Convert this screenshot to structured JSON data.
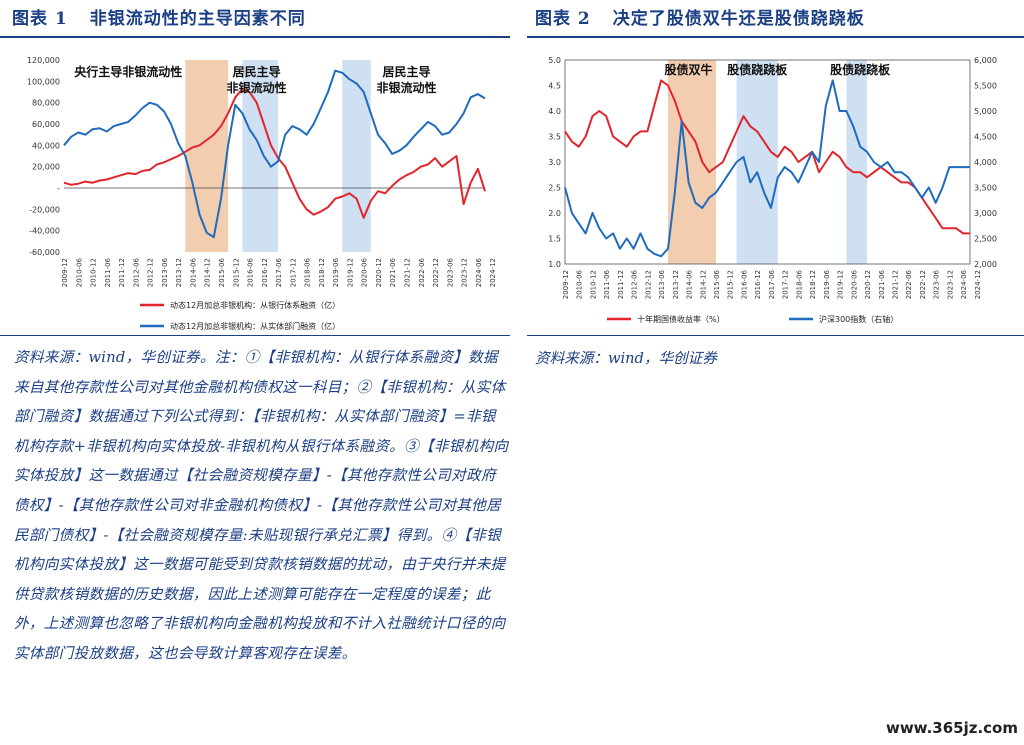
{
  "figure1": {
    "title_prefix": "图表 1",
    "title": "非银流动性的主导因素不同"
  },
  "figure2": {
    "title_prefix": "图表 2",
    "title": "决定了股债双牛还是股债跷跷板"
  },
  "note1": "资料来源：wind，华创证券。注：①【非银机构：从银行体系融资】数据来自其他存款性公司对其他金融机构债权这一科目；②【非银机构：从实体部门融资】数据通过下列公式得到：【非银机构：从实体部门融资】=非银机构存款+非银机构向实体投放-非银机构从银行体系融资。③【非银机构向实体投放】这一数据通过【社会融资规模存量】-【其他存款性公司对政府债权】-【其他存款性公司对非金融机构债权】-【其他存款性公司对其他居民部门债权】-【社会融资规模存量:未贴现银行承兑汇票】得到。④【非银机构向实体投放】这一数据可能受到贷款核销数据的扰动，由于央行并未提供贷款核销数据的历史数据，因此上述测算可能存在一定程度的误差；此外，上述测算也忽略了非银机构向金融机构投放和不计入社融统计口径的向实体部门投放数据，这也会导致计算客观存在误差。",
  "note2": "资料来源：wind，华创证券",
  "watermark": "www.365jz.com",
  "chart_data": [
    {
      "type": "line",
      "x_start": "2009-12",
      "x_step_months": 3,
      "x_ticks": [
        "2009-12",
        "2010-06",
        "2010-12",
        "2011-06",
        "2011-12",
        "2012-06",
        "2012-12",
        "2013-06",
        "2013-12",
        "2014-06",
        "2014-12",
        "2015-06",
        "2015-12",
        "2016-06",
        "2016-12",
        "2017-06",
        "2017-12",
        "2018-06",
        "2018-12",
        "2019-06",
        "2019-12",
        "2020-06",
        "2020-12",
        "2021-06",
        "2021-12",
        "2022-06",
        "2022-12",
        "2023-06",
        "2023-12",
        "2024-06",
        "2024-12"
      ],
      "ylim": [
        -60000,
        120000
      ],
      "y_ticks": [
        -60000,
        -40000,
        -20000,
        0,
        20000,
        40000,
        60000,
        80000,
        100000,
        120000
      ],
      "y_tick_labels": [
        "-60,000",
        "-40,000",
        "-20,000",
        "-",
        "20,000",
        "40,000",
        "60,000",
        "80,000",
        "100,000",
        "120,000"
      ],
      "shaded": [
        {
          "from": "2014-03",
          "to": "2015-09",
          "color": "#f3cdb0"
        },
        {
          "from": "2016-03",
          "to": "2017-06",
          "color": "#cfe0f3"
        },
        {
          "from": "2019-09",
          "to": "2020-09",
          "color": "#cfe0f3"
        }
      ],
      "annotations": [
        {
          "text": "央行主导非银流动性",
          "at": "2012-03",
          "y": 108000,
          "lines": 1
        },
        {
          "text": "居民主导",
          "text2": "非银流动性",
          "at": "2016-09",
          "y": 118000,
          "lines": 2
        },
        {
          "text": "居民主导",
          "text2": "非银流动性",
          "at": "2021-12",
          "y": 117000,
          "lines": 2
        }
      ],
      "series": [
        {
          "name": "动态12月加总非银机构：从银行体系融资（亿）",
          "color": "#e0262c",
          "values": [
            5000,
            3000,
            4000,
            6000,
            5000,
            7000,
            8000,
            10000,
            12000,
            14000,
            13000,
            16000,
            17000,
            22000,
            24000,
            27000,
            30000,
            34000,
            38000,
            40000,
            45000,
            50000,
            58000,
            70000,
            85000,
            93000,
            90000,
            80000,
            60000,
            40000,
            28000,
            20000,
            5000,
            -10000,
            -20000,
            -25000,
            -22000,
            -18000,
            -10000,
            -8000,
            -5000,
            -10000,
            -28000,
            -12000,
            -3000,
            -5000,
            2000,
            8000,
            12000,
            15000,
            20000,
            22000,
            28000,
            20000,
            25000,
            30000,
            -15000,
            5000,
            18000,
            -3000
          ]
        },
        {
          "name": "动态12月加总非银机构：从实体部门融资（亿）",
          "color": "#1f6bbf",
          "values": [
            40000,
            48000,
            52000,
            50000,
            55000,
            56000,
            53000,
            58000,
            60000,
            62000,
            68000,
            75000,
            80000,
            78000,
            72000,
            60000,
            42000,
            30000,
            5000,
            -25000,
            -42000,
            -46000,
            -10000,
            40000,
            78000,
            70000,
            55000,
            45000,
            30000,
            20000,
            25000,
            50000,
            58000,
            55000,
            50000,
            60000,
            75000,
            90000,
            110000,
            108000,
            102000,
            98000,
            90000,
            70000,
            50000,
            42000,
            32000,
            35000,
            40000,
            48000,
            55000,
            62000,
            58000,
            50000,
            52000,
            60000,
            70000,
            85000,
            88000,
            84000
          ]
        }
      ]
    },
    {
      "type": "line",
      "x_start": "2009-12",
      "x_step_months": 3,
      "x_ticks": [
        "2009-12",
        "2010-06",
        "2010-12",
        "2011-06",
        "2011-12",
        "2012-06",
        "2012-12",
        "2013-06",
        "2013-12",
        "2014-06",
        "2014-12",
        "2015-06",
        "2015-12",
        "2016-06",
        "2016-12",
        "2017-06",
        "2017-12",
        "2018-06",
        "2018-12",
        "2019-06",
        "2019-12",
        "2020-06",
        "2020-12",
        "2021-06",
        "2021-12",
        "2022-06",
        "2022-12",
        "2023-06",
        "2023-12",
        "2024-06",
        "2024-12"
      ],
      "ylim": [
        1.0,
        5.0
      ],
      "y_ticks": [
        1.0,
        1.5,
        2.0,
        2.5,
        3.0,
        3.5,
        4.0,
        4.5,
        5.0
      ],
      "y_tick_labels": [
        "1.0",
        "1.5",
        "2.0",
        "2.5",
        "3.0",
        "3.5",
        "4.0",
        "4.5",
        "5.0"
      ],
      "y2lim": [
        2000,
        6000
      ],
      "y2_ticks": [
        2000,
        2500,
        3000,
        3500,
        4000,
        4500,
        5000,
        5500,
        6000
      ],
      "y2_tick_labels": [
        "2,000",
        "2,500",
        "3,000",
        "3,500",
        "4,000",
        "4,500",
        "5,000",
        "5,500",
        "6,000"
      ],
      "shaded": [
        {
          "from": "2013-09",
          "to": "2015-06",
          "color": "#f3cdb0"
        },
        {
          "from": "2016-03",
          "to": "2017-09",
          "color": "#cfe0f3"
        },
        {
          "from": "2020-03",
          "to": "2020-12",
          "color": "#cfe0f3"
        }
      ],
      "annotations": [
        {
          "text": "股债双牛",
          "at": "2014-06"
        },
        {
          "text": "股债跷跷板",
          "at": "2016-12"
        },
        {
          "text": "股债跷跷板",
          "at": "2020-09"
        }
      ],
      "series": [
        {
          "name": "十年期国债收益率（%）",
          "color": "#e0262c",
          "axis": "left",
          "values": [
            3.6,
            3.4,
            3.3,
            3.5,
            3.9,
            4.0,
            3.9,
            3.5,
            3.4,
            3.3,
            3.5,
            3.6,
            3.6,
            4.1,
            4.6,
            4.5,
            4.2,
            3.8,
            3.6,
            3.4,
            3.0,
            2.8,
            2.9,
            3.0,
            3.3,
            3.6,
            3.9,
            3.7,
            3.6,
            3.4,
            3.2,
            3.1,
            3.3,
            3.2,
            3.0,
            3.1,
            3.2,
            2.8,
            3.0,
            3.2,
            3.1,
            2.9,
            2.8,
            2.8,
            2.7,
            2.8,
            2.9,
            2.8,
            2.7,
            2.6,
            2.6,
            2.5,
            2.3,
            2.1,
            1.9,
            1.7,
            1.7,
            1.7,
            1.6,
            1.6
          ]
        },
        {
          "name": "沪深300指数（右轴）",
          "color": "#1f6bbf",
          "axis": "right",
          "values": [
            3500,
            3000,
            2800,
            2600,
            3000,
            2700,
            2500,
            2600,
            2300,
            2500,
            2300,
            2600,
            2300,
            2200,
            2150,
            2300,
            3400,
            4800,
            3600,
            3200,
            3100,
            3300,
            3400,
            3600,
            3800,
            4000,
            4100,
            3600,
            3800,
            3400,
            3100,
            3700,
            3900,
            3800,
            3600,
            3900,
            4200,
            4000,
            5100,
            5600,
            5000,
            5000,
            4700,
            4300,
            4200,
            4000,
            3900,
            4000,
            3800,
            3800,
            3700,
            3500,
            3300,
            3500,
            3200,
            3500,
            3900,
            3900,
            3900,
            3900
          ]
        }
      ]
    }
  ]
}
